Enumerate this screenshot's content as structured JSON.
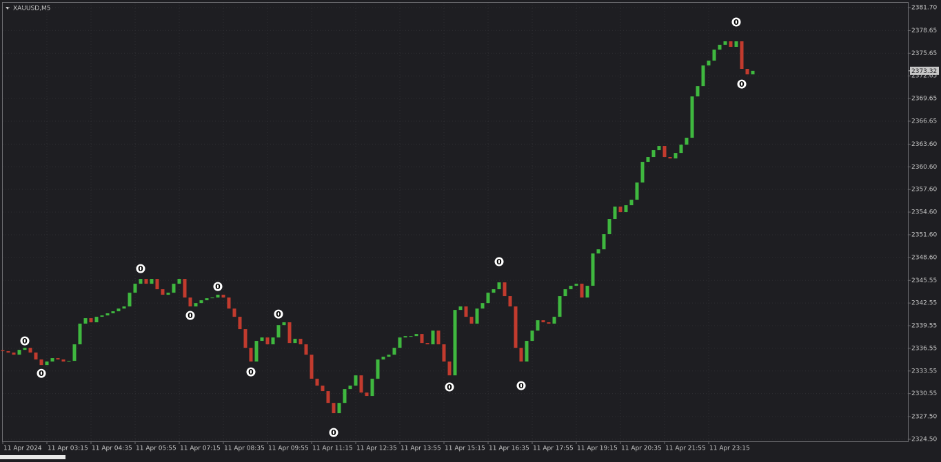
{
  "chart_data": {
    "type": "candlestick",
    "title": "XAUUSD,M5",
    "open": [
      2336.3,
      2336.17,
      2335.99,
      2335.71,
      2336.35,
      2336.62,
      2335.99,
      2335.07,
      2334.34,
      2334.8,
      2335.26,
      2335.07,
      2334.8,
      2334.89,
      2337.08,
      2339.82,
      2340.55,
      2340.0,
      2340.73,
      2340.91,
      2341.19,
      2341.46,
      2341.82,
      2342.1,
      2343.92,
      2345.11,
      2345.75,
      2345.11,
      2345.75,
      2344.38,
      2343.65,
      2343.92,
      2345.11,
      2345.75,
      2343.28,
      2342.1,
      2342.55,
      2342.92,
      2343.19,
      2343.28,
      2343.65,
      2343.28,
      2341.82,
      2340.73,
      2339.09,
      2336.62,
      2334.8,
      2337.54,
      2337.99,
      2337.08,
      2337.99,
      2339.63,
      2340.0,
      2337.26,
      2337.81,
      2337.08,
      2335.71,
      2332.52,
      2331.61,
      2330.88,
      2329.32,
      2327.96,
      2329.32,
      2331.15,
      2331.61,
      2332.97,
      2330.69,
      2330.24,
      2332.52,
      2335.07,
      2335.44,
      2335.71,
      2336.62,
      2337.99,
      2338.17,
      2338.17,
      2338.45,
      2337.26,
      2337.08,
      2338.9,
      2337.08,
      2334.8,
      2332.97,
      2341.64,
      2342.1,
      2340.73,
      2339.82,
      2341.82,
      2342.55,
      2343.92,
      2344.38,
      2345.29,
      2343.47,
      2342.1,
      2336.62,
      2334.8,
      2337.54,
      2338.9,
      2340.27,
      2340.0,
      2339.82,
      2340.73,
      2343.47,
      2344.38,
      2344.84,
      2345.11,
      2343.28,
      2344.84,
      2349.12,
      2349.67,
      2351.68,
      2353.69,
      2355.33,
      2354.6,
      2355.51,
      2356.24,
      2358.52,
      2361.26,
      2361.9,
      2362.81,
      2363.36,
      2361.9,
      2361.71,
      2362.44,
      2363.54,
      2364.45,
      2369.93,
      2371.29,
      2374.03,
      2374.67,
      2376.13,
      2376.77,
      2377.23,
      2376.5,
      2377.23,
      2373.58,
      2372.85
    ],
    "close": [
      2336.17,
      2335.99,
      2335.71,
      2336.35,
      2336.62,
      2335.99,
      2335.07,
      2334.34,
      2334.8,
      2335.26,
      2335.07,
      2334.8,
      2334.89,
      2337.08,
      2339.82,
      2340.55,
      2340.0,
      2340.73,
      2340.91,
      2341.19,
      2341.46,
      2341.82,
      2342.1,
      2343.92,
      2345.11,
      2345.75,
      2345.11,
      2345.75,
      2344.38,
      2343.65,
      2343.92,
      2345.11,
      2345.75,
      2343.28,
      2342.1,
      2342.55,
      2342.92,
      2343.19,
      2343.28,
      2343.65,
      2343.28,
      2341.82,
      2340.73,
      2339.09,
      2336.62,
      2334.8,
      2337.54,
      2337.99,
      2337.08,
      2337.99,
      2339.63,
      2340.0,
      2337.26,
      2337.81,
      2337.08,
      2335.71,
      2332.52,
      2331.61,
      2330.88,
      2329.32,
      2327.96,
      2329.32,
      2331.15,
      2331.61,
      2332.97,
      2330.69,
      2330.24,
      2332.52,
      2335.07,
      2335.44,
      2335.71,
      2336.62,
      2337.99,
      2338.17,
      2338.17,
      2338.45,
      2337.26,
      2337.08,
      2338.9,
      2337.08,
      2334.8,
      2332.97,
      2341.64,
      2342.1,
      2340.73,
      2339.82,
      2341.82,
      2342.55,
      2343.92,
      2344.38,
      2345.29,
      2343.47,
      2342.1,
      2336.62,
      2334.8,
      2337.54,
      2338.9,
      2340.27,
      2340.0,
      2339.82,
      2340.73,
      2343.47,
      2344.38,
      2344.84,
      2345.11,
      2343.28,
      2344.84,
      2349.12,
      2349.67,
      2351.68,
      2353.69,
      2355.33,
      2354.6,
      2355.51,
      2356.24,
      2358.52,
      2361.26,
      2361.9,
      2362.81,
      2363.36,
      2361.9,
      2361.71,
      2362.44,
      2363.54,
      2364.45,
      2369.93,
      2371.29,
      2374.03,
      2374.67,
      2376.13,
      2376.77,
      2377.23,
      2376.5,
      2377.23,
      2373.58,
      2372.85,
      2373.32
    ],
    "up_color": "#3fb83f",
    "down_color": "#c23b2e",
    "x_labels": [
      "11 Apr 2024",
      "11 Apr 03:15",
      "11 Apr 04:35",
      "11 Apr 05:55",
      "11 Apr 07:15",
      "11 Apr 08:35",
      "11 Apr 09:55",
      "11 Apr 11:15",
      "11 Apr 12:35",
      "11 Apr 13:55",
      "11 Apr 15:15",
      "11 Apr 16:35",
      "11 Apr 17:55",
      "11 Apr 19:15",
      "11 Apr 20:35",
      "11 Apr 21:55",
      "11 Apr 23:15"
    ],
    "ylim": [
      2324.5,
      2381.7
    ],
    "yticks": [
      {
        "value": 2381.7,
        "label": "2381.70"
      },
      {
        "value": 2378.65,
        "label": "2378.65"
      },
      {
        "value": 2375.65,
        "label": "2375.65"
      },
      {
        "value": 2372.65,
        "label": "2372.65"
      },
      {
        "value": 2369.65,
        "label": "2369.65"
      },
      {
        "value": 2366.65,
        "label": "2366.65"
      },
      {
        "value": 2363.6,
        "label": "2363.60"
      },
      {
        "value": 2360.6,
        "label": "2360.60"
      },
      {
        "value": 2357.6,
        "label": "2357.60"
      },
      {
        "value": 2354.6,
        "label": "2354.60"
      },
      {
        "value": 2351.6,
        "label": "2351.60"
      },
      {
        "value": 2348.6,
        "label": "2348.60"
      },
      {
        "value": 2345.55,
        "label": "2345.55"
      },
      {
        "value": 2342.55,
        "label": "2342.55"
      },
      {
        "value": 2339.55,
        "label": "2339.55"
      },
      {
        "value": 2336.55,
        "label": "2336.55"
      },
      {
        "value": 2333.55,
        "label": "2333.55"
      },
      {
        "value": 2330.55,
        "label": "2330.55"
      },
      {
        "value": 2327.5,
        "label": "2327.50"
      },
      {
        "value": 2324.5,
        "label": "2324.50"
      }
    ],
    "last_price": 2373.32,
    "grid": true,
    "markers": [
      {
        "index": 4,
        "price": 2336.62,
        "position": "above",
        "text": "0"
      },
      {
        "index": 7,
        "price": 2334.15,
        "position": "below",
        "text": "0"
      },
      {
        "index": 25,
        "price": 2346.2,
        "position": "above",
        "text": "0"
      },
      {
        "index": 34,
        "price": 2341.82,
        "position": "below",
        "text": "0"
      },
      {
        "index": 39,
        "price": 2343.83,
        "position": "above",
        "text": "0"
      },
      {
        "index": 45,
        "price": 2334.34,
        "position": "below",
        "text": "0"
      },
      {
        "index": 50,
        "price": 2340.18,
        "position": "above",
        "text": "0"
      },
      {
        "index": 60,
        "price": 2326.31,
        "position": "below",
        "text": "0"
      },
      {
        "index": 81,
        "price": 2332.34,
        "position": "below",
        "text": "0"
      },
      {
        "index": 90,
        "price": 2347.12,
        "position": "above",
        "text": "0"
      },
      {
        "index": 94,
        "price": 2332.52,
        "position": "below",
        "text": "0"
      },
      {
        "index": 133,
        "price": 2378.87,
        "position": "above",
        "text": "0"
      },
      {
        "index": 134,
        "price": 2372.48,
        "position": "below",
        "text": "0"
      }
    ]
  }
}
